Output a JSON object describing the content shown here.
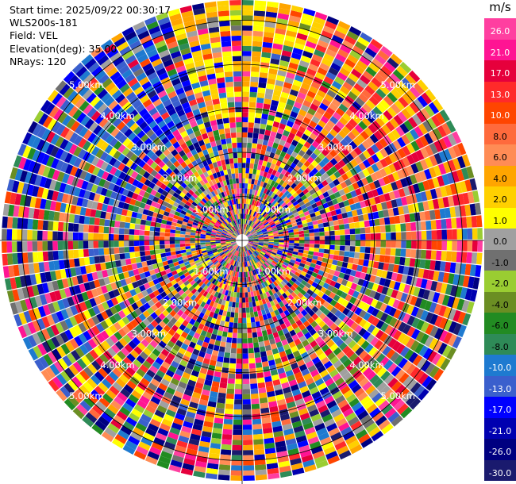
{
  "header": {
    "start_time": "Start time: 2025/09/22 00:30:17",
    "instrument": "WLS200s-181",
    "field": "Field: VEL",
    "elevation": "Elevation(deg): 35.00",
    "nrays": "NRays: 120"
  },
  "colorbar": {
    "unit": "m/s",
    "labels": [
      "26.0",
      "21.0",
      "17.0",
      "13.0",
      "10.0",
      "8.0",
      "6.0",
      "4.0",
      "2.0",
      "1.0",
      "0.0",
      "-1.0",
      "-2.0",
      "-4.0",
      "-6.0",
      "-8.0",
      "-10.0",
      "-13.0",
      "-17.0",
      "-21.0",
      "-26.0",
      "-30.0"
    ],
    "colors": [
      "#ff3fa0",
      "#ff1493",
      "#e6003c",
      "#ff2a2a",
      "#ff4500",
      "#ff6a3c",
      "#ff8c55",
      "#ffa500",
      "#ffd000",
      "#ffff00",
      "#a0a0a0",
      "#707070",
      "#9acd32",
      "#6b8e23",
      "#228b22",
      "#2e8b57",
      "#1e7ad0",
      "#3a5fcd",
      "#0000ff",
      "#0000b0",
      "#000080",
      "#1a1a6e"
    ]
  },
  "chart_data": {
    "type": "heatmap",
    "projection": "polar (PPI)",
    "field": "VEL",
    "units": "m/s",
    "nrays": 120,
    "range_rings_km": [
      1.0,
      2.0,
      3.0,
      4.0,
      5.0
    ],
    "ring_labels": [
      "1.00km",
      "2.00km",
      "3.00km",
      "4.00km",
      "5.00km"
    ],
    "value_range": [
      -30.0,
      26.0
    ]
  }
}
